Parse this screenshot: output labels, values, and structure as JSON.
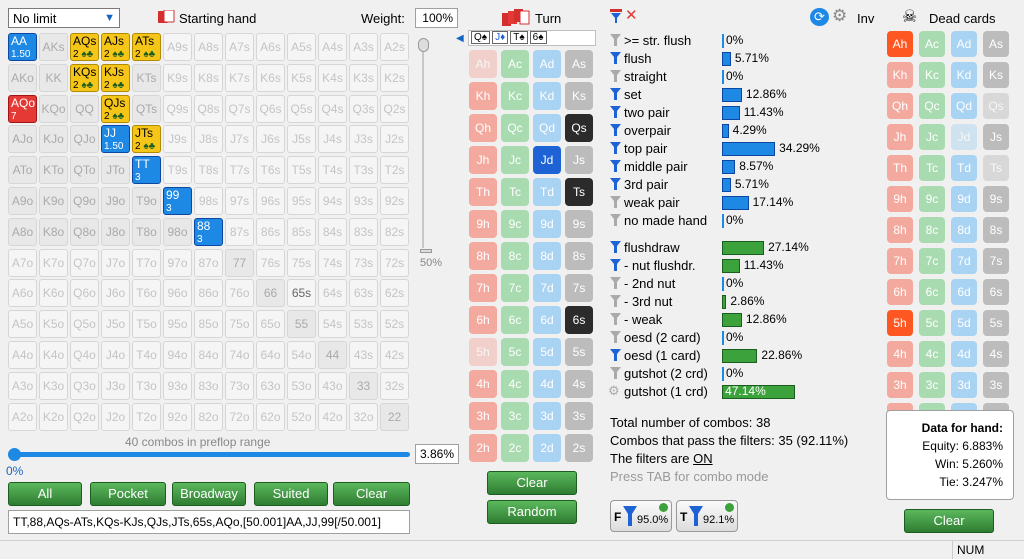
{
  "top": {
    "limit_select": "No limit",
    "starting_hand_label": "Starting hand",
    "weight_label": "Weight:",
    "weight_value": "100%",
    "turn_label": "Turn",
    "inv_label": "Inv",
    "dead_cards_label": "Dead cards"
  },
  "range_slider": {
    "percent_top": "50%",
    "percent_left": "0%",
    "percent_value": "3.86%",
    "combos_label": "40 combos in preflop range"
  },
  "range_buttons": [
    "All",
    "Pocket",
    "Broadway",
    "Suited",
    "Clear"
  ],
  "range_text": "TT,88,AQs-ATs,KQs-KJs,QJs,JTs,65s,AQo,[50.001]AA,JJ,99[/50.001]",
  "board": [
    "Q",
    "J",
    "T",
    "6"
  ],
  "filters": [
    {
      "label": ">= str. flush",
      "value": "0%",
      "pct": 0,
      "on": false,
      "green": false
    },
    {
      "label": "flush",
      "value": "5.71%",
      "pct": 5.71,
      "on": true,
      "green": false
    },
    {
      "label": "straight",
      "value": "0%",
      "pct": 0,
      "on": false,
      "green": false
    },
    {
      "label": "set",
      "value": "12.86%",
      "pct": 12.86,
      "on": true,
      "green": false
    },
    {
      "label": "two pair",
      "value": "11.43%",
      "pct": 11.43,
      "on": true,
      "green": false
    },
    {
      "label": "overpair",
      "value": "4.29%",
      "pct": 4.29,
      "on": true,
      "green": false
    },
    {
      "label": "top pair",
      "value": "34.29%",
      "pct": 34.29,
      "on": true,
      "green": false
    },
    {
      "label": "middle pair",
      "value": "8.57%",
      "pct": 8.57,
      "on": true,
      "green": false
    },
    {
      "label": "3rd pair",
      "value": "5.71%",
      "pct": 5.71,
      "on": true,
      "green": false
    },
    {
      "label": "weak pair",
      "value": "17.14%",
      "pct": 17.14,
      "on": false,
      "green": false
    },
    {
      "label": "no made hand",
      "value": "0%",
      "pct": 0,
      "on": false,
      "green": false
    },
    {
      "label": "flushdraw",
      "value": "27.14%",
      "pct": 27.14,
      "on": true,
      "green": true
    },
    {
      "label": "- nut flushdr.",
      "value": "11.43%",
      "pct": 11.43,
      "on": true,
      "green": true
    },
    {
      "label": "- 2nd nut",
      "value": "0%",
      "pct": 0,
      "on": false,
      "green": true
    },
    {
      "label": "- 3rd nut",
      "value": "2.86%",
      "pct": 2.86,
      "on": false,
      "green": true
    },
    {
      "label": "- weak",
      "value": "12.86%",
      "pct": 12.86,
      "on": false,
      "green": true
    },
    {
      "label": "oesd (2 card)",
      "value": "0%",
      "pct": 0,
      "on": false,
      "green": true
    },
    {
      "label": "oesd (1 card)",
      "value": "22.86%",
      "pct": 22.86,
      "on": true,
      "green": true
    },
    {
      "label": "gutshot (2 crd)",
      "value": "0%",
      "pct": 0,
      "on": false,
      "green": true
    },
    {
      "label": "gutshot (1 crd)",
      "value": "47.14%",
      "pct": 47.14,
      "on": false,
      "green": true
    }
  ],
  "summary": {
    "total": "Total number of combos: 38",
    "pass": "Combos that pass the filters: 35 (92.11%)",
    "filters_on_prefix": "The filters are ",
    "filters_on_state": "ON",
    "hint": "Press TAB for combo mode"
  },
  "filter_buttons": {
    "f_value": "95.0%",
    "t_value": "92.1%",
    "f_letter": "F",
    "t_letter": "T"
  },
  "board_buttons": {
    "clear": "Clear",
    "random": "Random"
  },
  "data_for_hand": {
    "title": "Data for hand:",
    "equity": "Equity: 6.883%",
    "win": "Win: 5.260%",
    "tie": "Tie: 3.247%"
  },
  "dead_clear": "Clear",
  "status_num": "NUM"
}
